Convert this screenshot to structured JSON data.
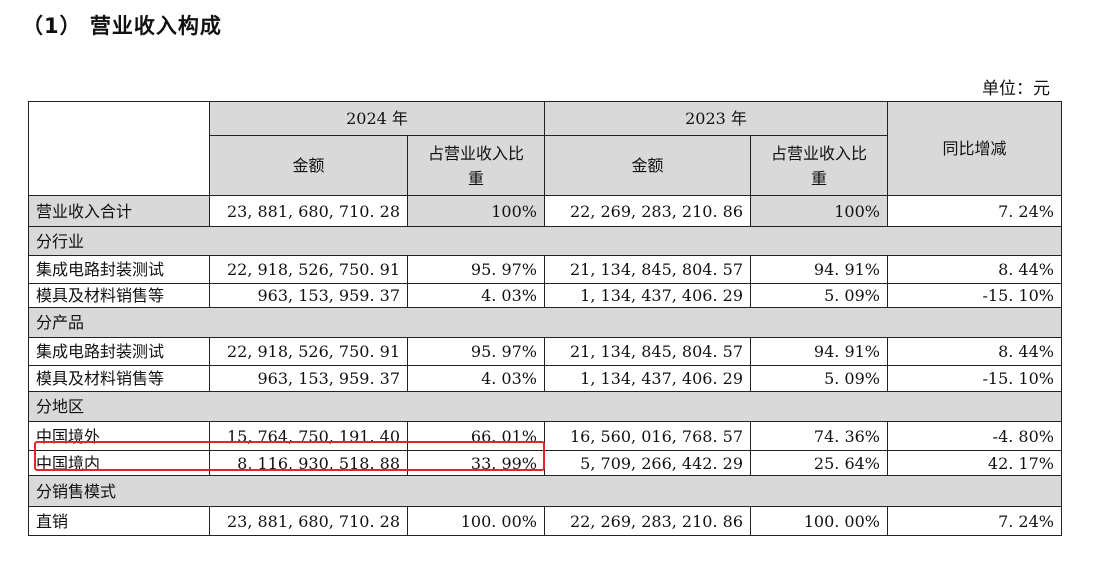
{
  "title": "（1） 营业收入构成",
  "unit": "单位：元",
  "header": {
    "year_2024": "2024 年",
    "year_2023": "2023 年",
    "amount": "金额",
    "ratio": "占营业收入比重",
    "yoy": "同比增减"
  },
  "total": {
    "label": "营业收入合计",
    "a2024": "23, 881, 680, 710. 28",
    "r2024": "100%",
    "a2023": "22, 269, 283, 210. 86",
    "r2023": "100%",
    "yoy": "7. 24%"
  },
  "sections": [
    {
      "title": "分行业",
      "rows": [
        {
          "label": "集成电路封装测试",
          "a2024": "22, 918, 526, 750. 91",
          "r2024": "95. 97%",
          "a2023": "21, 134, 845, 804. 57",
          "r2023": "94. 91%",
          "yoy": "8. 44%"
        },
        {
          "label": "模具及材料销售等",
          "a2024": "963, 153, 959. 37",
          "r2024": "4. 03%",
          "a2023": "1, 134, 437, 406. 29",
          "r2023": "5. 09%",
          "yoy": "-15. 10%"
        }
      ]
    },
    {
      "title": "分产品",
      "rows": [
        {
          "label": "集成电路封装测试",
          "a2024": "22, 918, 526, 750. 91",
          "r2024": "95. 97%",
          "a2023": "21, 134, 845, 804. 57",
          "r2023": "94. 91%",
          "yoy": "8. 44%"
        },
        {
          "label": "模具及材料销售等",
          "a2024": "963, 153, 959. 37",
          "r2024": "4. 03%",
          "a2023": "1, 134, 437, 406. 29",
          "r2023": "5. 09%",
          "yoy": "-15. 10%"
        }
      ]
    },
    {
      "title": "分地区",
      "rows": [
        {
          "label": "中国境外",
          "a2024": "15, 764, 750, 191. 40",
          "r2024": "66. 01%",
          "a2023": "16, 560, 016, 768. 57",
          "r2023": "74. 36%",
          "yoy": "-4. 80%"
        },
        {
          "label": "中国境内",
          "a2024": "8, 116, 930, 518. 88",
          "r2024": "33. 99%",
          "a2023": "5, 709, 266, 442. 29",
          "r2023": "25. 64%",
          "yoy": "42. 17%"
        }
      ]
    },
    {
      "title": "分销售模式",
      "rows": [
        {
          "label": "直销",
          "a2024": "23, 881, 680, 710. 28",
          "r2024": "100. 00%",
          "a2023": "22, 269, 283, 210. 86",
          "r2023": "100. 00%",
          "yoy": "7. 24%"
        }
      ]
    }
  ]
}
